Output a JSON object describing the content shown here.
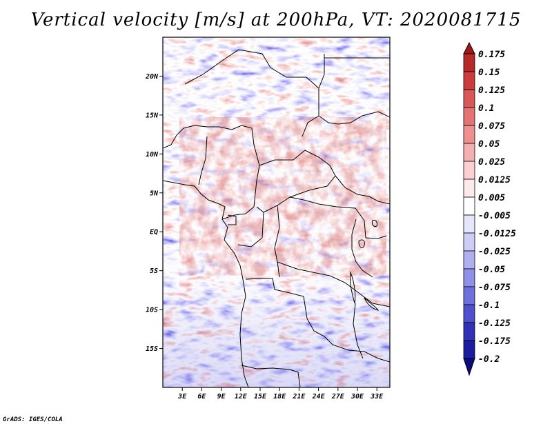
{
  "title": "Vertical velocity [m/s] at 200hPa, VT: 2020081715",
  "credit": "GrADS: IGES/COLA",
  "map": {
    "lon_range": [
      0,
      35
    ],
    "lat_range": [
      -20,
      25
    ],
    "lat_labels": [
      "20N",
      "15N",
      "10N",
      "5N",
      "EQ",
      "5S",
      "10S",
      "15S"
    ],
    "lon_labels": [
      "3E",
      "6E",
      "9E",
      "12E",
      "15E",
      "18E",
      "21E",
      "24E",
      "27E",
      "30E",
      "33E"
    ]
  },
  "colorbar": {
    "labels": [
      "0.175",
      "0.15",
      "0.125",
      "0.1",
      "0.075",
      "0.05",
      "0.025",
      "0.0125",
      "0.005",
      "-0.005",
      "-0.0125",
      "-0.025",
      "-0.05",
      "-0.075",
      "-0.1",
      "-0.125",
      "-0.175",
      "-0.2"
    ],
    "colors": [
      "#a01818",
      "#b82a2a",
      "#cc3c3c",
      "#d85858",
      "#e47474",
      "#ec9090",
      "#f4b0b0",
      "#fad0d0",
      "#fdeaea",
      "#ffffff",
      "#e6e6fa",
      "#cdcdf6",
      "#b0b0f0",
      "#9090e8",
      "#7070dc",
      "#5050cc",
      "#3030b8",
      "#1c1ca0",
      "#0c0c80"
    ]
  }
}
